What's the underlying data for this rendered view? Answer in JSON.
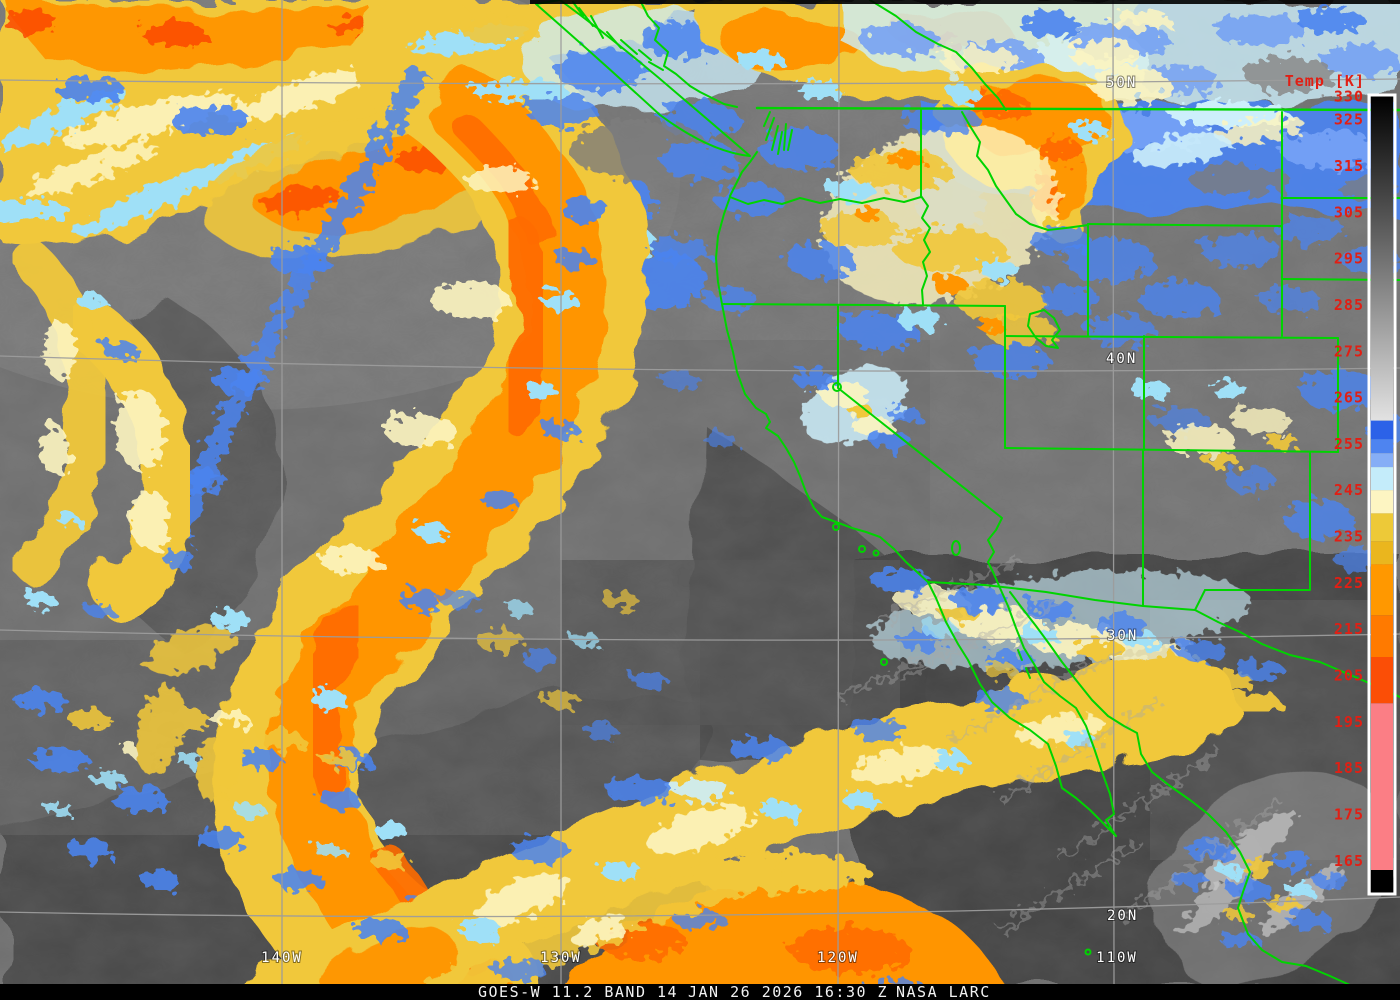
{
  "product": {
    "caption_left": "GOES-W 11.2 BAND 14",
    "caption_mid": "JAN 26 2026 16:30 Z",
    "caption_right": "NASA LARC"
  },
  "colorbar": {
    "title": "Temp [K]",
    "units": "K",
    "label_color": "#e11f14",
    "ticks": [
      330,
      325,
      315,
      305,
      295,
      285,
      275,
      265,
      255,
      245,
      235,
      225,
      215,
      205,
      195,
      185,
      175,
      165
    ],
    "segments": [
      {
        "t1": 330,
        "t2": 260,
        "kind": "ramp",
        "from_color": "#000000",
        "to_color": "#e2e2e2"
      },
      {
        "t1": 260,
        "t2": 256,
        "color": "#2c62e8"
      },
      {
        "t1": 256,
        "t2": 253,
        "color": "#4e84f0"
      },
      {
        "t1": 253,
        "t2": 250,
        "color": "#86aef6"
      },
      {
        "t1": 250,
        "t2": 245,
        "color": "#c4ecfa"
      },
      {
        "t1": 245,
        "t2": 240,
        "color": "#fdf5c2"
      },
      {
        "t1": 240,
        "t2": 234,
        "color": "#edc938"
      },
      {
        "t1": 234,
        "t2": 229,
        "color": "#eab61e"
      },
      {
        "t1": 229,
        "t2": 218,
        "color": "#ff9800"
      },
      {
        "t1": 218,
        "t2": 209,
        "color": "#ff7a00"
      },
      {
        "t1": 209,
        "t2": 199,
        "color": "#fb4e06"
      },
      {
        "t1": 199,
        "t2": 163,
        "color": "#fb7e85"
      },
      {
        "t1": 163,
        "t2": 158,
        "color": "#000000"
      }
    ]
  },
  "grid": {
    "line_color": "#9c9c9c",
    "label_color": "#ffffff",
    "lat": [
      {
        "text": "50N"
      },
      {
        "text": "40N"
      },
      {
        "text": "30N"
      },
      {
        "text": "20N"
      }
    ],
    "lon": [
      {
        "text": "140W"
      },
      {
        "text": "130W"
      },
      {
        "text": "120W"
      },
      {
        "text": "110W"
      }
    ]
  },
  "map": {
    "border_color": "#00d400",
    "features": "state and national boundaries, Pacific coastline, Baja California, Great Salt Lake, Lake Tahoe, Salton Sea"
  },
  "palette": {
    "warm_gray": "#6e6e6e",
    "cold_blue": "#4b84f0",
    "pale_cyan": "#cdeffb",
    "cream": "#fdf5c0",
    "gold": "#f1c83b",
    "orange": "#ff9500",
    "deep_orange": "#ff6c00",
    "red_orange": "#fc4a00",
    "salmon": "#fb7e85"
  }
}
